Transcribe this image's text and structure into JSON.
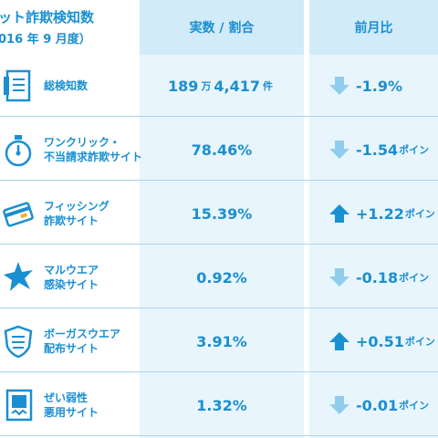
{
  "header": {
    "title_line1": "ット詐欺検知数",
    "title_line2": "016 年 9 月度）",
    "col_value": "実数 / 割合",
    "col_change": "前月比"
  },
  "colors": {
    "accent": "#1a8fd1",
    "arrow_down": "#8fcdee",
    "arrow_up": "#1a8fd1",
    "column_bg": "#e9f5fc",
    "header_bg": "#d2ebf8"
  },
  "rows": [
    {
      "label_line1": "総検知数",
      "label_line2": "",
      "icon": "document-list-icon",
      "value_num": "189",
      "value_unit1": "万",
      "value_num2": "4,417",
      "value_unit2": "件",
      "direction": "down",
      "change": "-1.9%",
      "change_suffix": ""
    },
    {
      "label_line1": "ワンクリック・",
      "label_line2": "不当請求詐欺サイト",
      "icon": "stopwatch-icon",
      "value_num": "78.46%",
      "value_unit1": "",
      "value_num2": "",
      "value_unit2": "",
      "direction": "down",
      "change": "-1.54",
      "change_suffix": "ポイン"
    },
    {
      "label_line1": "フィッシング",
      "label_line2": "詐欺サイト",
      "icon": "credit-card-icon",
      "value_num": "15.39%",
      "value_unit1": "",
      "value_num2": "",
      "value_unit2": "",
      "direction": "up",
      "change": "+1.22",
      "change_suffix": "ポイン"
    },
    {
      "label_line1": "マルウエア",
      "label_line2": "感染サイト",
      "icon": "burst-icon",
      "value_num": "0.92%",
      "value_unit1": "",
      "value_num2": "",
      "value_unit2": "",
      "direction": "down",
      "change": "-0.18",
      "change_suffix": "ポイン"
    },
    {
      "label_line1": "ボーガスウエア",
      "label_line2": "配布サイト",
      "icon": "shield-icon",
      "value_num": "3.91%",
      "value_unit1": "",
      "value_num2": "",
      "value_unit2": "",
      "direction": "up",
      "change": "+0.51",
      "change_suffix": "ポイン"
    },
    {
      "label_line1": "ぜい弱性",
      "label_line2": "悪用サイト",
      "icon": "broken-page-icon",
      "value_num": "1.32%",
      "value_unit1": "",
      "value_num2": "",
      "value_unit2": "",
      "direction": "down",
      "change": "-0.01",
      "change_suffix": "ポイン"
    }
  ]
}
